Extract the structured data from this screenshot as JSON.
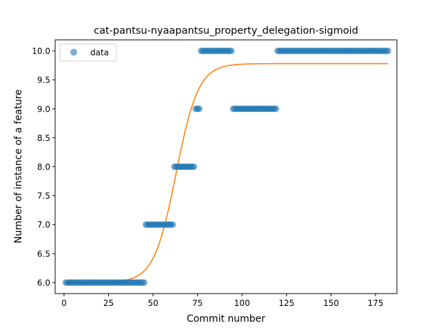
{
  "chart_data": {
    "type": "scatter",
    "title": "cat-pantsu-nyaapantsu_property_delegation-sigmoid",
    "xlabel": "Commit number",
    "ylabel": "Number of instance of a feature",
    "xlim": [
      -5,
      187
    ],
    "ylim": [
      5.81,
      10.19
    ],
    "x_ticks": [
      0,
      25,
      50,
      75,
      100,
      125,
      150,
      175
    ],
    "y_ticks": [
      6.0,
      6.5,
      7.0,
      7.5,
      8.0,
      8.5,
      9.0,
      9.5,
      10.0
    ],
    "y_tick_labels": [
      "6.0",
      "6.5",
      "7.0",
      "7.5",
      "8.0",
      "8.5",
      "9.0",
      "9.5",
      "10.0"
    ],
    "grid": false,
    "legend": {
      "position": "top-left",
      "entries": [
        "data"
      ]
    },
    "colors": {
      "scatter": "#1f77b4",
      "fit": "#ff7f0e"
    },
    "series": [
      {
        "name": "data",
        "kind": "scatter",
        "segments": [
          {
            "x_start": 1,
            "x_end": 45,
            "y": 6.0
          },
          {
            "x_start": 46,
            "x_end": 61,
            "y": 7.0
          },
          {
            "x_start": 62,
            "x_end": 73,
            "y": 8.0
          },
          {
            "x_start": 74,
            "x_end": 76,
            "y": 9.0
          },
          {
            "x_start": 77,
            "x_end": 94,
            "y": 10.0
          },
          {
            "x_start": 95,
            "x_end": 119,
            "y": 9.0
          },
          {
            "x_start": 120,
            "x_end": 182,
            "y": 10.0
          }
        ]
      },
      {
        "kind": "line",
        "model": "sigmoid",
        "params": {
          "bottom": 6.0,
          "top": 9.78,
          "x0": 63.0,
          "k": 0.16
        },
        "x_range": [
          1,
          182
        ]
      }
    ]
  }
}
